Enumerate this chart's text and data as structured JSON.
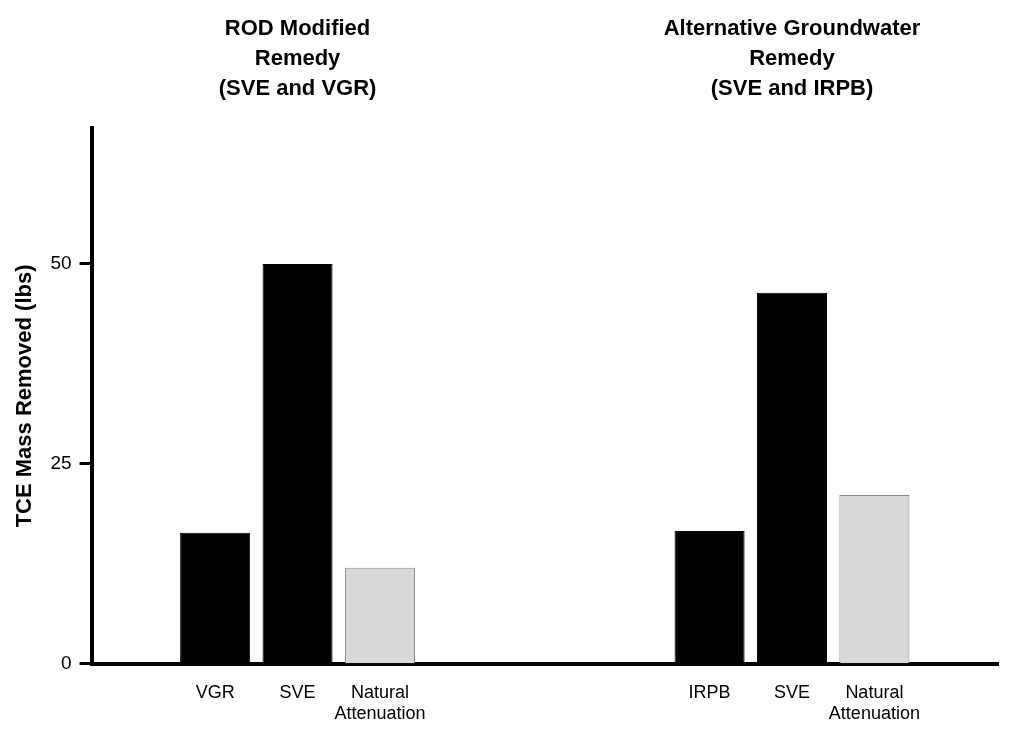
{
  "chart_data": {
    "type": "bar",
    "ylabel": "TCE Mass Removed (lbs)",
    "categories": [
      null,
      "VGR",
      "SVE",
      "Natural Attenuation",
      null,
      null,
      null,
      "IRPB",
      "SVE",
      "Natural Attenuation",
      null
    ],
    "values": [
      null,
      16.4,
      50,
      12.0,
      null,
      null,
      null,
      16.6,
      46.4,
      21.1,
      null
    ],
    "colors": [
      "#000000",
      "#000000",
      "#000000",
      "#d9d9d9",
      "#000000",
      "#000000",
      "#000000",
      "#000000",
      "#000000",
      "#d9d9d9",
      "#000000"
    ],
    "annotations": [
      "ROD Modified\nRemedy\n(SVE and VGR)",
      "Alternative Groundwater\nRemedy\n(SVE and IRPB)"
    ],
    "ylim": [
      0,
      67
    ],
    "yticks": [
      0,
      25,
      50
    ],
    "grid": false,
    "legend": false
  }
}
